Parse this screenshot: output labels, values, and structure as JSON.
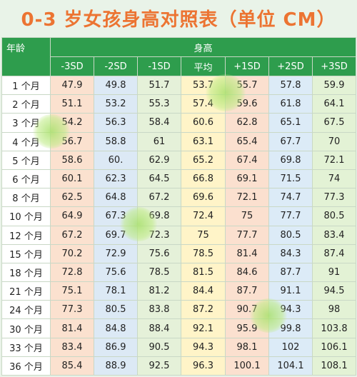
{
  "title": "0-3 岁女孩身高对照表（单位 CM）",
  "header": {
    "age_label": "年龄",
    "group_label": "身高",
    "columns": [
      "-3SD",
      "-2SD",
      "-1SD",
      "平均",
      "+1SD",
      "+2SD",
      "+3SD"
    ]
  },
  "rows": [
    {
      "age": "1 个月",
      "values": [
        "47.9",
        "49.8",
        "51.7",
        "53.7",
        "55.7",
        "57.8",
        "59.9"
      ]
    },
    {
      "age": "2 个月",
      "values": [
        "51.1",
        "53.2",
        "55.3",
        "57.4",
        "59.6",
        "61.8",
        "64.1"
      ]
    },
    {
      "age": "3 个月",
      "values": [
        "54.2",
        "56.3",
        "58.4",
        "60.6",
        "62.8",
        "65.1",
        "67.5"
      ]
    },
    {
      "age": "4 个月",
      "values": [
        "56.7",
        "58.8",
        "61",
        "63.1",
        "65.4",
        "67.7",
        "70"
      ]
    },
    {
      "age": "5 个月",
      "values": [
        "58.6",
        "60.",
        "62.9",
        "65.2",
        "67.4",
        "69.8",
        "72.1"
      ]
    },
    {
      "age": "6 个月",
      "values": [
        "60.1",
        "62.3",
        "64.5",
        "66.8",
        "69.1",
        "71.5",
        "74"
      ]
    },
    {
      "age": "8 个月",
      "values": [
        "62.5",
        "64.8",
        "67.2",
        "69.6",
        "72.1",
        "74.7",
        "77.3"
      ]
    },
    {
      "age": "10 个月",
      "values": [
        "64.9",
        "67.3",
        "69.8",
        "72.4",
        "75",
        "77.7",
        "80.5"
      ]
    },
    {
      "age": "12 个月",
      "values": [
        "67.2",
        "69.7",
        "72.3",
        "75",
        "77.7",
        "80.5",
        "83.4"
      ]
    },
    {
      "age": "15 个月",
      "values": [
        "70.2",
        "72.9",
        "75.6",
        "78.5",
        "81.4",
        "84.3",
        "87.4"
      ]
    },
    {
      "age": "18 个月",
      "values": [
        "72.8",
        "75.6",
        "78.5",
        "81.5",
        "84.6",
        "87.7",
        "91"
      ]
    },
    {
      "age": "21 个月",
      "values": [
        "75.1",
        "78.1",
        "81.2",
        "84.4",
        "87.7",
        "91.1",
        "94.5"
      ]
    },
    {
      "age": "24 个月",
      "values": [
        "77.3",
        "80.5",
        "83.8",
        "87.2",
        "90.7",
        "94.3",
        "98"
      ]
    },
    {
      "age": "30 个月",
      "values": [
        "81.4",
        "84.8",
        "88.4",
        "92.1",
        "95.9",
        "99.8",
        "103.8"
      ]
    },
    {
      "age": "33 个月",
      "values": [
        "83.4",
        "86.9",
        "90.5",
        "94.3",
        "98.1",
        "102",
        "106.1"
      ]
    },
    {
      "age": "36 个月",
      "values": [
        "85.4",
        "88.9",
        "92.5",
        "96.3",
        "100.1",
        "104.1",
        "108.1"
      ]
    }
  ]
}
